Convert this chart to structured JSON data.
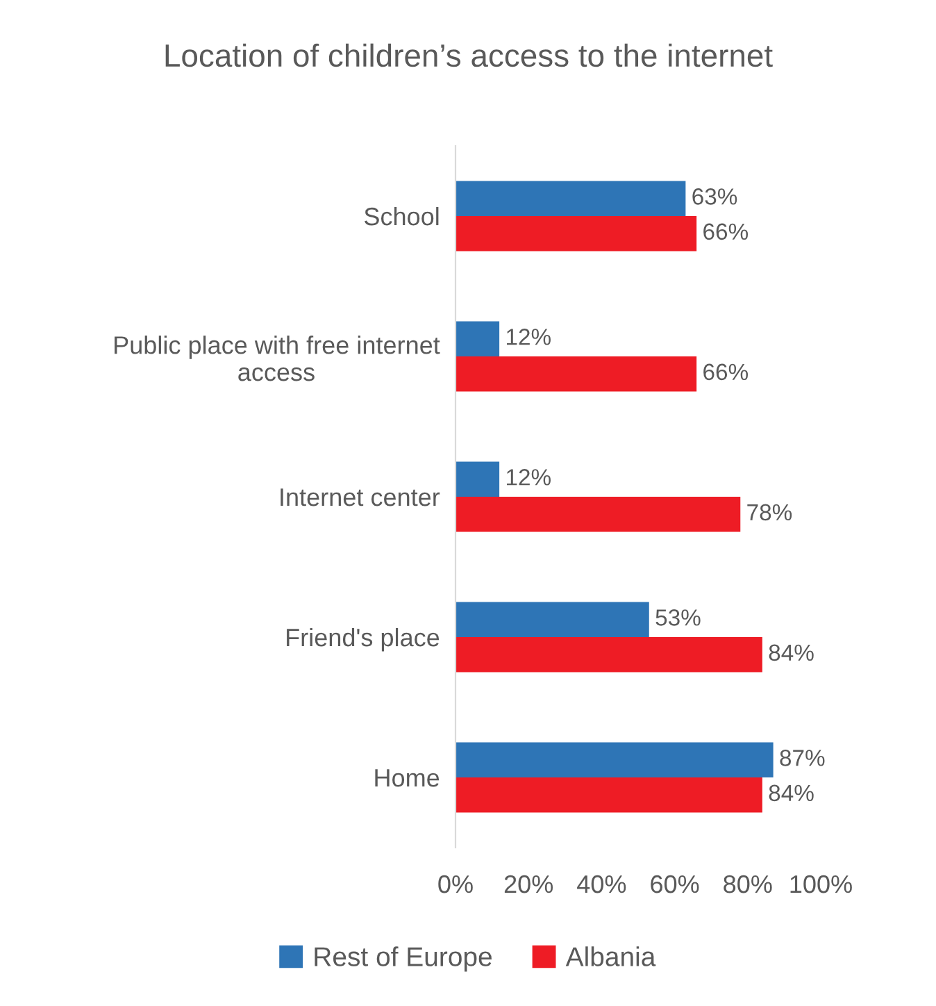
{
  "chart_data": {
    "type": "bar",
    "orientation": "horizontal",
    "title": "Location of children’s access to the internet",
    "categories": [
      "School",
      "Public place with free internet\naccess",
      "Internet center",
      "Friend's place",
      "Home"
    ],
    "series": [
      {
        "name": "Rest of Europe",
        "color": "#2e75b6",
        "values": [
          63,
          12,
          12,
          53,
          87
        ],
        "value_labels": [
          "63%",
          "12%",
          "12%",
          "53%",
          "87%"
        ]
      },
      {
        "name": "Albania",
        "color": "#ee1c25",
        "values": [
          66,
          66,
          78,
          84,
          84
        ],
        "value_labels": [
          "66%",
          "66%",
          "78%",
          "84%",
          "84%"
        ]
      }
    ],
    "xlim": [
      0,
      100
    ],
    "xticks": [
      {
        "value": 0,
        "label": "0%"
      },
      {
        "value": 20,
        "label": "20%"
      },
      {
        "value": 40,
        "label": "40%"
      },
      {
        "value": 60,
        "label": "60%"
      },
      {
        "value": 80,
        "label": "80%"
      },
      {
        "value": 100,
        "label": "100%"
      }
    ],
    "grid": false,
    "legend": "bottom"
  }
}
